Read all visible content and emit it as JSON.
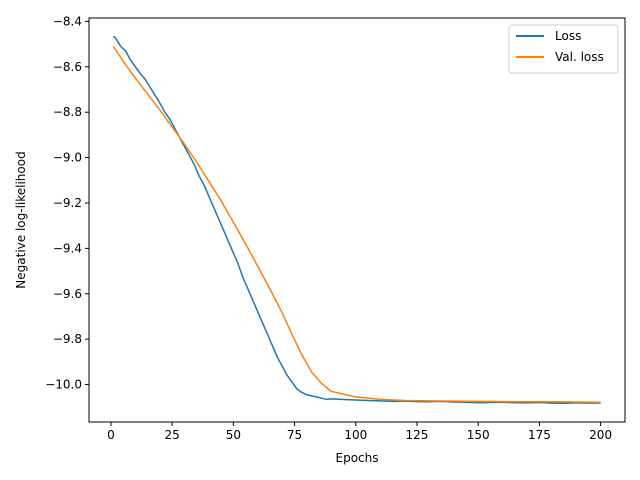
{
  "chart_data": {
    "type": "line",
    "title": "",
    "xlabel": "Epochs",
    "ylabel": "Negative log-likelihood",
    "xlim": [
      -8.95,
      209.95
    ],
    "ylim": [
      -10.165,
      -8.385
    ],
    "xticks": [
      0,
      25,
      50,
      75,
      100,
      125,
      150,
      175,
      200
    ],
    "yticks": [
      -8.4,
      -8.6,
      -8.8,
      -9.0,
      -9.2,
      -9.4,
      -9.6,
      -9.8,
      -10.0
    ],
    "xtick_labels": [
      "0",
      "25",
      "50",
      "75",
      "100",
      "125",
      "150",
      "175",
      "200"
    ],
    "ytick_labels": [
      "−8.4",
      "−8.6",
      "−8.8",
      "−9.0",
      "−9.2",
      "−9.4",
      "−9.6",
      "−9.8",
      "−10.0"
    ],
    "grid": false,
    "legend_position": "top-right",
    "series": [
      {
        "name": "Loss",
        "color": "#1f77b4",
        "x": [
          1,
          2,
          4,
          6,
          8,
          10,
          12,
          14,
          16,
          18,
          20,
          22,
          24,
          26,
          28,
          30,
          32,
          34,
          36,
          38,
          40,
          42,
          44,
          46,
          48,
          50,
          52,
          54,
          56,
          58,
          60,
          62,
          64,
          66,
          68,
          70,
          72,
          74,
          76,
          78,
          80,
          82,
          84,
          86,
          88,
          90,
          95,
          100,
          105,
          110,
          115,
          120,
          125,
          130,
          135,
          140,
          145,
          150,
          155,
          160,
          165,
          170,
          175,
          180,
          185,
          190,
          195,
          200
        ],
        "y": [
          -8.465,
          -8.475,
          -8.51,
          -8.53,
          -8.57,
          -8.6,
          -8.63,
          -8.655,
          -8.69,
          -8.725,
          -8.76,
          -8.8,
          -8.83,
          -8.87,
          -8.91,
          -8.95,
          -8.99,
          -9.03,
          -9.08,
          -9.12,
          -9.17,
          -9.22,
          -9.27,
          -9.32,
          -9.37,
          -9.42,
          -9.47,
          -9.53,
          -9.58,
          -9.63,
          -9.68,
          -9.73,
          -9.78,
          -9.83,
          -9.88,
          -9.92,
          -9.96,
          -9.99,
          -10.02,
          -10.035,
          -10.045,
          -10.05,
          -10.055,
          -10.06,
          -10.065,
          -10.063,
          -10.066,
          -10.068,
          -10.07,
          -10.072,
          -10.074,
          -10.073,
          -10.075,
          -10.076,
          -10.074,
          -10.077,
          -10.078,
          -10.08,
          -10.079,
          -10.078,
          -10.08,
          -10.081,
          -10.079,
          -10.082,
          -10.083,
          -10.08,
          -10.082,
          -10.081
        ]
      },
      {
        "name": "Val. loss",
        "color": "#ff7f0e",
        "x": [
          1,
          5,
          10,
          15,
          20,
          25,
          30,
          35,
          40,
          45,
          50,
          55,
          60,
          65,
          70,
          74,
          78,
          82,
          86,
          90,
          100,
          110,
          120,
          130,
          140,
          150,
          160,
          170,
          180,
          190,
          200
        ],
        "y": [
          -8.51,
          -8.575,
          -8.65,
          -8.72,
          -8.79,
          -8.865,
          -8.94,
          -9.02,
          -9.105,
          -9.19,
          -9.285,
          -9.38,
          -9.48,
          -9.58,
          -9.685,
          -9.78,
          -9.87,
          -9.945,
          -9.995,
          -10.03,
          -10.055,
          -10.065,
          -10.07,
          -10.072,
          -10.073,
          -10.074,
          -10.075,
          -10.076,
          -10.076,
          -10.077,
          -10.078
        ]
      }
    ]
  }
}
